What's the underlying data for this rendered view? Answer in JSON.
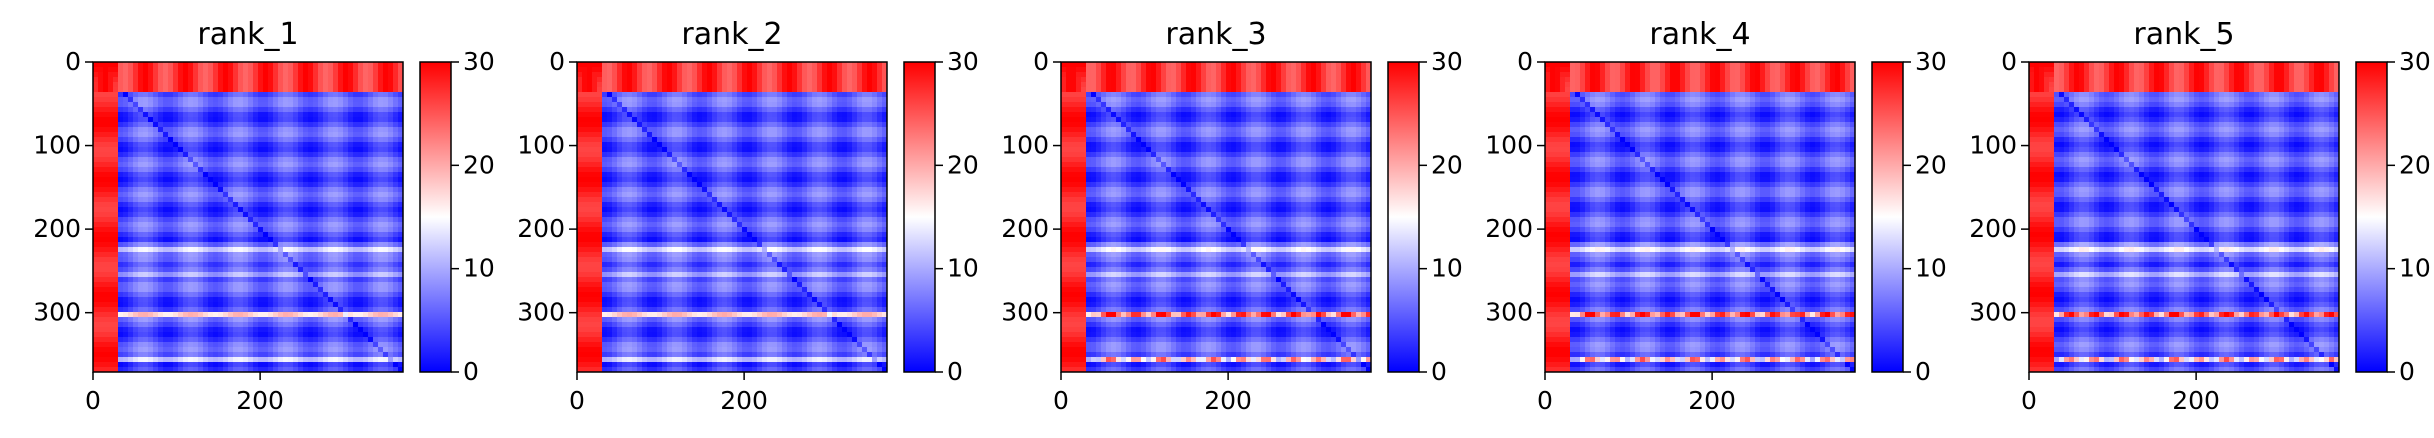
{
  "figure": {
    "panel_count": 5
  },
  "colorbar": {
    "colormap": "bwr",
    "low_color": "#0000ff",
    "mid_color": "#ffffff",
    "high_color": "#ff0000",
    "range": [
      0,
      30
    ],
    "ticks": [
      "0",
      "10",
      "20",
      "30"
    ]
  },
  "chart_data": [
    {
      "type": "heatmap",
      "title": "rank_1",
      "xlim": [
        0,
        371
      ],
      "ylim": [
        371,
        0
      ],
      "xticks": [
        "0",
        "200"
      ],
      "yticks": [
        "0",
        "100",
        "200",
        "300"
      ],
      "clim": [
        0,
        30
      ],
      "colorbar_ticks": [
        "0",
        "10",
        "20",
        "30"
      ],
      "description_values": {
        "top_band_rows": [
          0,
          35
        ],
        "left_band_cols": [
          0,
          25
        ],
        "diagonal": "low",
        "bright_rows": [
          220,
          250,
          300,
          355
        ]
      }
    },
    {
      "type": "heatmap",
      "title": "rank_2",
      "xlim": [
        0,
        371
      ],
      "ylim": [
        371,
        0
      ],
      "xticks": [
        "0",
        "200"
      ],
      "yticks": [
        "0",
        "100",
        "200",
        "300"
      ],
      "clim": [
        0,
        30
      ],
      "colorbar_ticks": [
        "0",
        "10",
        "20",
        "30"
      ],
      "description_values": {
        "top_band_rows": [
          0,
          35
        ],
        "left_band_cols": [
          0,
          25
        ],
        "diagonal": "low",
        "bright_rows": [
          220,
          250,
          300,
          355
        ]
      }
    },
    {
      "type": "heatmap",
      "title": "rank_3",
      "xlim": [
        0,
        371
      ],
      "ylim": [
        371,
        0
      ],
      "xticks": [
        "0",
        "200"
      ],
      "yticks": [
        "0",
        "100",
        "200",
        "300"
      ],
      "clim": [
        0,
        30
      ],
      "colorbar_ticks": [
        "0",
        "10",
        "20",
        "30"
      ],
      "description_values": {
        "top_band_rows": [
          0,
          35
        ],
        "left_band_cols": [
          0,
          25
        ],
        "diagonal": "low",
        "bright_rows": [
          220,
          250,
          300,
          355
        ]
      }
    },
    {
      "type": "heatmap",
      "title": "rank_4",
      "xlim": [
        0,
        371
      ],
      "ylim": [
        371,
        0
      ],
      "xticks": [
        "0",
        "200"
      ],
      "yticks": [
        "0",
        "100",
        "200",
        "300"
      ],
      "clim": [
        0,
        30
      ],
      "colorbar_ticks": [
        "0",
        "10",
        "20",
        "30"
      ],
      "description_values": {
        "top_band_rows": [
          0,
          35
        ],
        "left_band_cols": [
          0,
          25
        ],
        "diagonal": "low",
        "bright_rows": [
          220,
          250,
          300,
          355
        ]
      }
    },
    {
      "type": "heatmap",
      "title": "rank_5",
      "xlim": [
        0,
        371
      ],
      "ylim": [
        371,
        0
      ],
      "xticks": [
        "0",
        "200"
      ],
      "yticks": [
        "0",
        "100",
        "200",
        "300"
      ],
      "clim": [
        0,
        30
      ],
      "colorbar_ticks": [
        "0",
        "10",
        "20",
        "30"
      ],
      "description_values": {
        "top_band_rows": [
          0,
          35
        ],
        "left_band_cols": [
          0,
          25
        ],
        "diagonal": "low",
        "bright_rows": [
          220,
          250,
          300,
          355
        ]
      }
    }
  ]
}
